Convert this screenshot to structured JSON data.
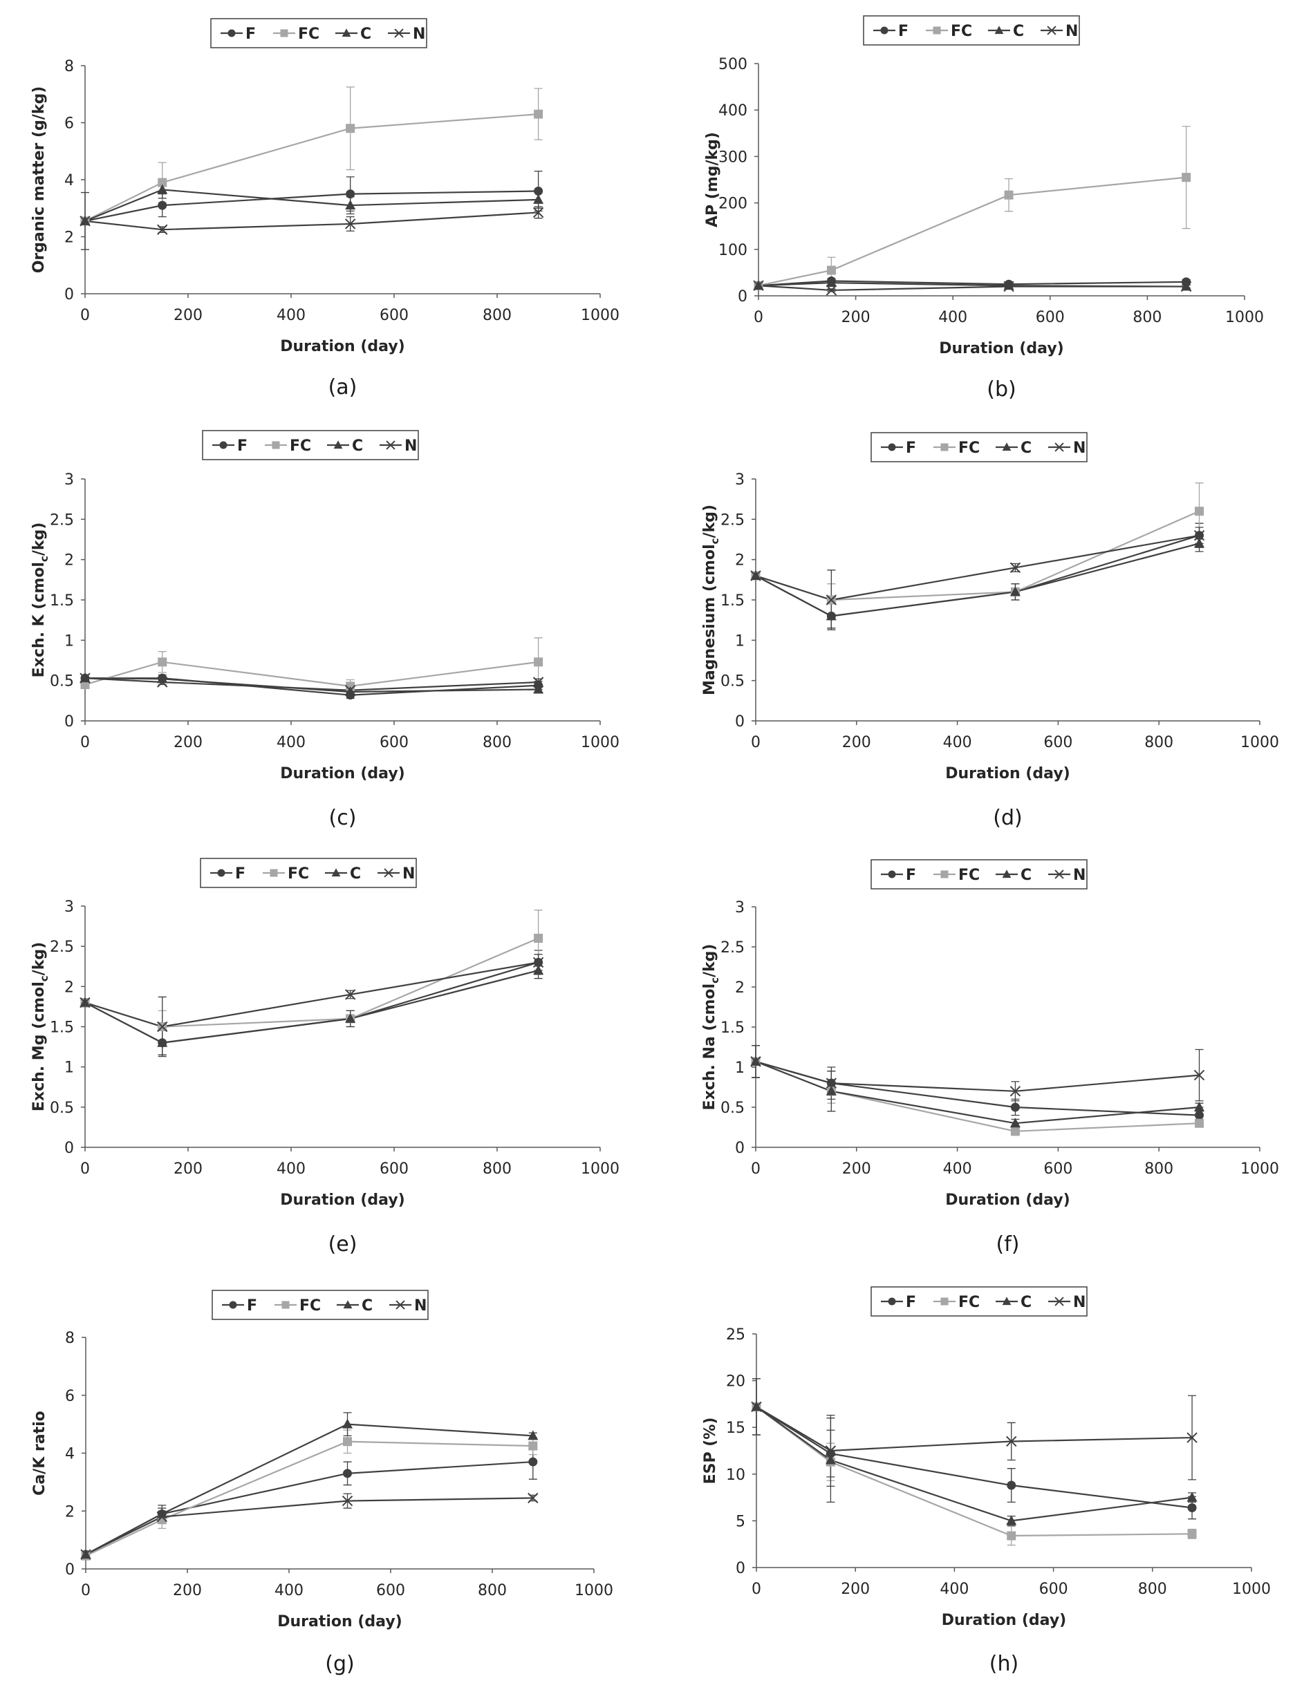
{
  "chart_data": [
    {
      "type": "line",
      "panel_label": "(a)",
      "ylabel": "Organic matter (g/kg)",
      "xlabel": "Duration (day)",
      "xlim": [
        0,
        1000
      ],
      "xticks": [
        0,
        200,
        400,
        600,
        800,
        1000
      ],
      "ylim": [
        0,
        8
      ],
      "yticks": [
        0,
        2,
        4,
        6,
        8
      ],
      "x": [
        0,
        150,
        515,
        880
      ],
      "legend": [
        "F",
        "FC",
        "C",
        "N"
      ],
      "series": [
        {
          "name": "F",
          "marker": "circle",
          "color": "#404040",
          "values": [
            2.55,
            3.1,
            3.5,
            3.6
          ],
          "errors": [
            0,
            0.4,
            0.6,
            0.7
          ]
        },
        {
          "name": "FC",
          "marker": "square",
          "color": "#a6a6a6",
          "values": [
            2.55,
            3.9,
            5.8,
            6.3
          ],
          "errors": [
            0,
            0.7,
            1.45,
            0.9
          ]
        },
        {
          "name": "C",
          "marker": "triangle",
          "color": "#404040",
          "values": [
            2.55,
            3.65,
            3.1,
            3.3
          ],
          "errors": [
            1.0,
            0.3,
            0.3,
            0.3
          ]
        },
        {
          "name": "N",
          "marker": "x",
          "color": "#404040",
          "values": [
            2.55,
            2.25,
            2.45,
            2.85
          ],
          "errors": [
            0,
            0.1,
            0.25,
            0.2
          ]
        }
      ]
    },
    {
      "type": "line",
      "panel_label": "(b)",
      "ylabel": "AP (mg/kg)",
      "xlabel": "Duration (day)",
      "xlim": [
        0,
        1000
      ],
      "xticks": [
        0,
        200,
        400,
        600,
        800,
        1000
      ],
      "ylim": [
        0,
        500
      ],
      "yticks": [
        0,
        100,
        200,
        300,
        400,
        500
      ],
      "x": [
        0,
        150,
        515,
        880
      ],
      "legend": [
        "F",
        "FC",
        "C",
        "N"
      ],
      "series": [
        {
          "name": "F",
          "marker": "circle",
          "color": "#404040",
          "values": [
            22,
            32,
            25,
            30
          ],
          "errors": [
            0,
            5,
            5,
            5
          ]
        },
        {
          "name": "FC",
          "marker": "square",
          "color": "#a6a6a6",
          "values": [
            22,
            55,
            217,
            255
          ],
          "errors": [
            0,
            28,
            35,
            110
          ]
        },
        {
          "name": "C",
          "marker": "triangle",
          "color": "#404040",
          "values": [
            22,
            28,
            22,
            20
          ],
          "errors": [
            0,
            4,
            4,
            4
          ]
        },
        {
          "name": "N",
          "marker": "x",
          "color": "#404040",
          "values": [
            22,
            12,
            20,
            20
          ],
          "errors": [
            0,
            3,
            3,
            3
          ]
        }
      ]
    },
    {
      "type": "line",
      "panel_label": "(c)",
      "ylabel": "Exch. K (cmolc/kg)",
      "xlabel": "Duration (day)",
      "xlim": [
        0,
        1000
      ],
      "xticks": [
        0,
        200,
        400,
        600,
        800,
        1000
      ],
      "ylim": [
        0,
        3
      ],
      "yticks": [
        0,
        0.5,
        1,
        1.5,
        2,
        2.5,
        3
      ],
      "x": [
        0,
        150,
        515,
        880
      ],
      "legend": [
        "F",
        "FC",
        "C",
        "N"
      ],
      "series": [
        {
          "name": "F",
          "marker": "circle",
          "color": "#404040",
          "values": [
            0.53,
            0.53,
            0.32,
            0.44
          ],
          "errors": [
            0,
            0.04,
            0.04,
            0.05
          ]
        },
        {
          "name": "FC",
          "marker": "square",
          "color": "#a6a6a6",
          "values": [
            0.45,
            0.73,
            0.43,
            0.73
          ],
          "errors": [
            0,
            0.13,
            0.08,
            0.3
          ]
        },
        {
          "name": "C",
          "marker": "triangle",
          "color": "#404040",
          "values": [
            0.53,
            0.52,
            0.36,
            0.39
          ],
          "errors": [
            0,
            0.03,
            0.03,
            0.03
          ]
        },
        {
          "name": "N",
          "marker": "x",
          "color": "#404040",
          "values": [
            0.53,
            0.48,
            0.38,
            0.48
          ],
          "errors": [
            0,
            0.03,
            0.03,
            0.04
          ]
        }
      ]
    },
    {
      "type": "line",
      "panel_label": "(d)",
      "ylabel": "Magnesium (cmolc/kg)",
      "xlabel": "Duration (day)",
      "xlim": [
        0,
        1000
      ],
      "xticks": [
        0,
        200,
        400,
        600,
        800,
        1000
      ],
      "ylim": [
        0,
        3
      ],
      "yticks": [
        0,
        0.5,
        1,
        1.5,
        2,
        2.5,
        3
      ],
      "x": [
        0,
        150,
        515,
        880
      ],
      "legend": [
        "F",
        "FC",
        "C",
        "N"
      ],
      "series": [
        {
          "name": "F",
          "marker": "circle",
          "color": "#404040",
          "values": [
            1.8,
            1.3,
            1.6,
            2.3
          ],
          "errors": [
            0.05,
            0.15,
            0.1,
            0.15
          ]
        },
        {
          "name": "FC",
          "marker": "square",
          "color": "#a6a6a6",
          "values": [
            1.8,
            1.5,
            1.6,
            2.6
          ],
          "errors": [
            0.05,
            0.2,
            0.1,
            0.35
          ]
        },
        {
          "name": "C",
          "marker": "triangle",
          "color": "#404040",
          "values": [
            1.8,
            1.3,
            1.6,
            2.2
          ],
          "errors": [
            0.05,
            0.15,
            0.1,
            0.1
          ]
        },
        {
          "name": "N",
          "marker": "x",
          "color": "#404040",
          "values": [
            1.8,
            1.5,
            1.9,
            2.3
          ],
          "errors": [
            0.05,
            0.37,
            0.05,
            0.1
          ]
        }
      ]
    },
    {
      "type": "line",
      "panel_label": "(e)",
      "ylabel": "Exch. Mg (cmolc/kg)",
      "xlabel": "Duration (day)",
      "xlim": [
        0,
        1000
      ],
      "xticks": [
        0,
        200,
        400,
        600,
        800,
        1000
      ],
      "ylim": [
        0,
        3
      ],
      "yticks": [
        0,
        0.5,
        1,
        1.5,
        2,
        2.5,
        3
      ],
      "x": [
        0,
        150,
        515,
        880
      ],
      "legend": [
        "F",
        "FC",
        "C",
        "N"
      ],
      "series": [
        {
          "name": "F",
          "marker": "circle",
          "color": "#404040",
          "values": [
            1.8,
            1.3,
            1.6,
            2.3
          ],
          "errors": [
            0.05,
            0.15,
            0.1,
            0.15
          ]
        },
        {
          "name": "FC",
          "marker": "square",
          "color": "#a6a6a6",
          "values": [
            1.8,
            1.5,
            1.6,
            2.6
          ],
          "errors": [
            0.05,
            0.2,
            0.1,
            0.35
          ]
        },
        {
          "name": "C",
          "marker": "triangle",
          "color": "#404040",
          "values": [
            1.8,
            1.3,
            1.6,
            2.2
          ],
          "errors": [
            0.05,
            0.15,
            0.1,
            0.1
          ]
        },
        {
          "name": "N",
          "marker": "x",
          "color": "#404040",
          "values": [
            1.8,
            1.5,
            1.9,
            2.3
          ],
          "errors": [
            0.05,
            0.37,
            0.05,
            0.1
          ]
        }
      ]
    },
    {
      "type": "line",
      "panel_label": "(f)",
      "ylabel": "Exch. Na (cmolc/kg)",
      "xlabel": "Duration (day)",
      "xlim": [
        0,
        1000
      ],
      "xticks": [
        0,
        200,
        400,
        600,
        800,
        1000
      ],
      "ylim": [
        0,
        3
      ],
      "yticks": [
        0,
        0.5,
        1,
        1.5,
        2,
        2.5,
        3
      ],
      "x": [
        0,
        150,
        515,
        880
      ],
      "legend": [
        "F",
        "FC",
        "C",
        "N"
      ],
      "series": [
        {
          "name": "F",
          "marker": "circle",
          "color": "#404040",
          "values": [
            1.07,
            0.8,
            0.5,
            0.4
          ],
          "errors": [
            0.2,
            0.15,
            0.1,
            0.1
          ]
        },
        {
          "name": "FC",
          "marker": "square",
          "color": "#a6a6a6",
          "values": [
            1.07,
            0.7,
            0.2,
            0.3
          ],
          "errors": [
            0.2,
            0.15,
            0.05,
            0.05
          ]
        },
        {
          "name": "C",
          "marker": "triangle",
          "color": "#404040",
          "values": [
            1.07,
            0.7,
            0.3,
            0.5
          ],
          "errors": [
            0.2,
            0.25,
            0.05,
            0.05
          ]
        },
        {
          "name": "N",
          "marker": "x",
          "color": "#404040",
          "values": [
            1.07,
            0.8,
            0.7,
            0.9
          ],
          "errors": [
            0.2,
            0.2,
            0.12,
            0.32
          ]
        }
      ]
    },
    {
      "type": "line",
      "panel_label": "(g)",
      "ylabel": "Ca/K ratio",
      "xlabel": "Duration (day)",
      "xlim": [
        0,
        1000
      ],
      "xticks": [
        0,
        200,
        400,
        600,
        800,
        1000
      ],
      "ylim": [
        0,
        8
      ],
      "yticks": [
        0,
        2,
        4,
        6,
        8
      ],
      "x": [
        0,
        150,
        515,
        880
      ],
      "legend": [
        "F",
        "FC",
        "C",
        "N"
      ],
      "series": [
        {
          "name": "F",
          "marker": "circle",
          "color": "#404040",
          "values": [
            0.5,
            1.9,
            3.3,
            3.7
          ],
          "errors": [
            0,
            0.3,
            0.4,
            0.6
          ]
        },
        {
          "name": "FC",
          "marker": "square",
          "color": "#a6a6a6",
          "values": [
            0.45,
            1.7,
            4.4,
            4.25
          ],
          "errors": [
            0,
            0.3,
            0.4,
            0.3
          ]
        },
        {
          "name": "C",
          "marker": "triangle",
          "color": "#404040",
          "values": [
            0.5,
            1.9,
            5.0,
            4.6
          ],
          "errors": [
            0,
            0.2,
            0.4,
            0.1
          ]
        },
        {
          "name": "N",
          "marker": "x",
          "color": "#404040",
          "values": [
            0.5,
            1.8,
            2.35,
            2.45
          ],
          "errors": [
            0,
            0.2,
            0.25,
            0.1
          ]
        }
      ]
    },
    {
      "type": "line",
      "panel_label": "(h)",
      "ylabel": "ESP (%)",
      "xlabel": "Duration (day)",
      "xlim": [
        0,
        1000
      ],
      "xticks": [
        0,
        200,
        400,
        600,
        800,
        1000
      ],
      "ylim": [
        0,
        25
      ],
      "yticks": [
        0,
        5,
        10,
        15,
        20,
        25
      ],
      "x": [
        0,
        150,
        515,
        880
      ],
      "legend": [
        "F",
        "FC",
        "C",
        "N"
      ],
      "series": [
        {
          "name": "F",
          "marker": "circle",
          "color": "#404040",
          "values": [
            17.2,
            12.2,
            8.8,
            6.4
          ],
          "errors": [
            3,
            2.5,
            1.8,
            1.2
          ]
        },
        {
          "name": "FC",
          "marker": "square",
          "color": "#a6a6a6",
          "values": [
            17.2,
            11.3,
            3.4,
            3.6
          ],
          "errors": [
            3,
            2.0,
            1.0,
            0.5
          ]
        },
        {
          "name": "C",
          "marker": "triangle",
          "color": "#404040",
          "values": [
            17.2,
            11.5,
            5.0,
            7.5
          ],
          "errors": [
            3,
            4.5,
            0.5,
            0.5
          ]
        },
        {
          "name": "N",
          "marker": "x",
          "color": "#404040",
          "values": [
            17.2,
            12.5,
            13.5,
            13.9
          ],
          "errors": [
            3,
            3.8,
            2.0,
            4.5
          ]
        }
      ]
    }
  ]
}
